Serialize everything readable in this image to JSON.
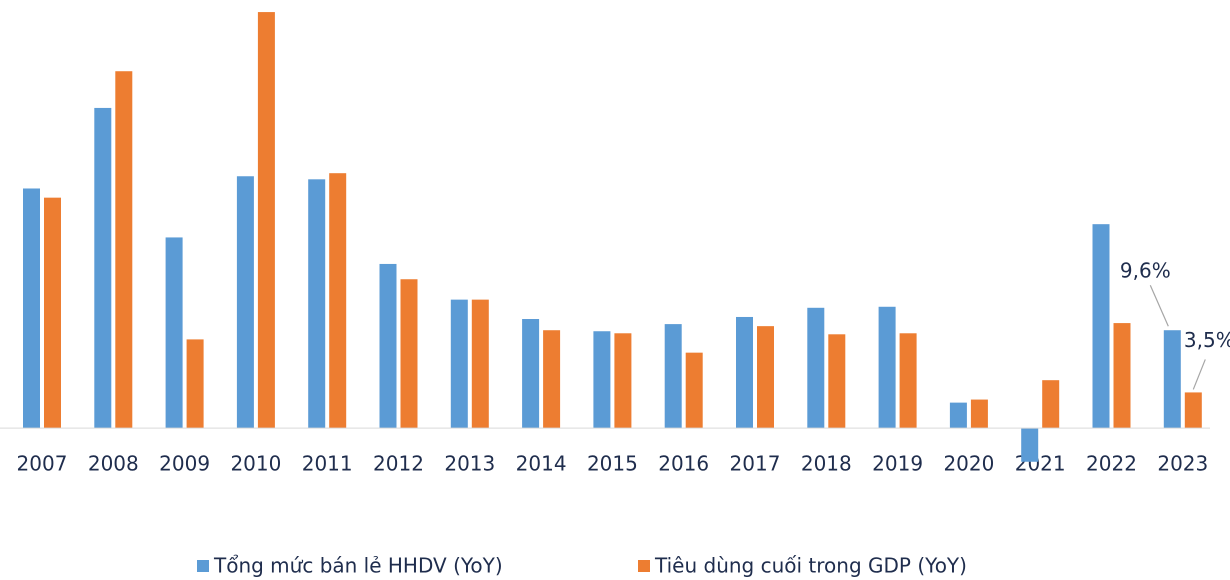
{
  "chart_data": {
    "type": "bar",
    "categories": [
      "2007",
      "2008",
      "2009",
      "2010",
      "2011",
      "2012",
      "2013",
      "2014",
      "2015",
      "2016",
      "2017",
      "2018",
      "2019",
      "2020",
      "2021",
      "2022",
      "2023"
    ],
    "series": [
      {
        "name": "Tổng mức bán lẻ HHDV (YoY)",
        "color": "#5b9bd5",
        "values": [
          23.5,
          31.4,
          18.7,
          24.7,
          24.4,
          16.1,
          12.6,
          10.7,
          9.5,
          10.2,
          10.9,
          11.8,
          11.9,
          2.5,
          -3.3,
          20.0,
          9.6
        ],
        "value_labels": [
          null,
          null,
          null,
          null,
          null,
          null,
          null,
          null,
          null,
          null,
          null,
          null,
          null,
          null,
          null,
          null,
          "9,6%"
        ]
      },
      {
        "name": "Tiêu dùng cuối trong GDP (YoY)",
        "color": "#ed7d31",
        "values": [
          22.6,
          35.0,
          8.7,
          40.8,
          25.0,
          14.6,
          12.6,
          9.6,
          9.3,
          7.4,
          10.0,
          9.2,
          9.3,
          2.8,
          4.7,
          10.3,
          3.5
        ],
        "value_labels": [
          null,
          null,
          null,
          null,
          null,
          null,
          null,
          null,
          null,
          null,
          null,
          null,
          null,
          null,
          null,
          null,
          "3,5%"
        ]
      }
    ],
    "ylim": [
      -4.5,
      41.2
    ]
  }
}
